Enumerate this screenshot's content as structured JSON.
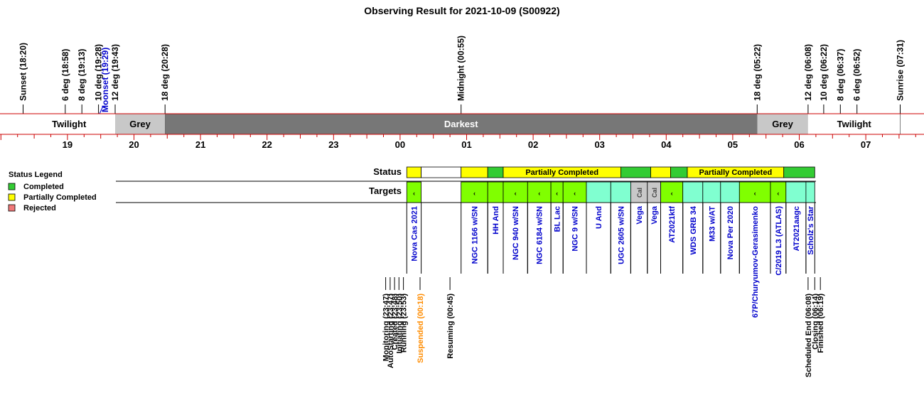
{
  "title": "Observing Result for 2021-10-09 (S00922)",
  "colors": {
    "completed": "#33CC33",
    "partial": "#FFFF00",
    "rejected": "#F07878",
    "target_green": "#80FF00",
    "target_cyan": "#80FFD0",
    "target_cal": "#C8C8C8",
    "grey_band": "#C8C8C8",
    "darkest_band": "#777777",
    "red_line": "#CC0000",
    "target_text": "#0000CC",
    "suspended_text": "#FF8C00"
  },
  "events_top": [
    {
      "label": "Sunset (18:20)",
      "hour": 18.333
    },
    {
      "label": "6 deg (18:58)",
      "hour": 18.967
    },
    {
      "label": "8 deg (19:13)",
      "hour": 19.217
    },
    {
      "label": "10 deg (19:28)",
      "hour": 19.467
    },
    {
      "label": "Moonset (19:29)",
      "hour": 19.483,
      "moon": true
    },
    {
      "label": "12 deg (19:43)",
      "hour": 19.717
    },
    {
      "label": "18 deg (20:28)",
      "hour": 20.467
    },
    {
      "label": "Midnight (00:55)",
      "hour": 24.917
    },
    {
      "label": "18 deg (05:22)",
      "hour": 29.367
    },
    {
      "label": "12 deg (06:08)",
      "hour": 30.133
    },
    {
      "label": "10 deg (06:22)",
      "hour": 30.367
    },
    {
      "label": "8 deg (06:37)",
      "hour": 30.617
    },
    {
      "label": "6 deg (06:52)",
      "hour": 30.867
    },
    {
      "label": "Sunrise (07:31)",
      "hour": 31.517
    }
  ],
  "bands": [
    {
      "label": "",
      "from": 18.0,
      "to": 18.333,
      "kind": "white"
    },
    {
      "label": "Twilight",
      "from": 18.333,
      "to": 19.717,
      "kind": "white"
    },
    {
      "label": "Grey",
      "from": 19.717,
      "to": 20.467,
      "kind": "grey"
    },
    {
      "label": "Darkest",
      "from": 20.467,
      "to": 29.367,
      "kind": "dark"
    },
    {
      "label": "Grey",
      "from": 29.367,
      "to": 30.133,
      "kind": "grey"
    },
    {
      "label": "Twilight",
      "from": 30.133,
      "to": 31.517,
      "kind": "white"
    }
  ],
  "hours": [
    "19",
    "20",
    "21",
    "22",
    "23",
    "00",
    "01",
    "02",
    "03",
    "04",
    "05",
    "06",
    "07"
  ],
  "legend": {
    "title": "Status Legend",
    "items": [
      {
        "label": "Completed",
        "color": "#33CC33"
      },
      {
        "label": "Partially Completed",
        "color": "#FFFF00"
      },
      {
        "label": "Rejected",
        "color": "#F07878"
      }
    ]
  },
  "row_labels": {
    "status": "Status",
    "targets": "Targets"
  },
  "status_segments": [
    {
      "from": 24.1,
      "to": 24.317,
      "status": "partial",
      "label": ""
    },
    {
      "from": 24.317,
      "to": 24.917,
      "status": "none",
      "label": ""
    },
    {
      "from": 24.917,
      "to": 25.317,
      "status": "partial",
      "label": ""
    },
    {
      "from": 25.317,
      "to": 25.55,
      "status": "completed",
      "label": ""
    },
    {
      "from": 25.55,
      "to": 27.317,
      "status": "partial",
      "label": "Partially Completed"
    },
    {
      "from": 27.317,
      "to": 27.767,
      "status": "completed",
      "label": ""
    },
    {
      "from": 27.767,
      "to": 28.067,
      "status": "partial",
      "label": ""
    },
    {
      "from": 28.067,
      "to": 28.317,
      "status": "completed",
      "label": ""
    },
    {
      "from": 28.317,
      "to": 29.767,
      "status": "partial",
      "label": "Partially Completed"
    },
    {
      "from": 29.767,
      "to": 30.233,
      "status": "completed",
      "label": ""
    }
  ],
  "targets": [
    {
      "name": "Nova Cas 2021",
      "from": 24.1,
      "to": 24.317,
      "color": "green",
      "mark": "‹"
    },
    {
      "name": "NGC 1166 w/SN",
      "from": 24.917,
      "to": 25.317,
      "color": "green",
      "mark": "‹"
    },
    {
      "name": "HH And",
      "from": 25.317,
      "to": 25.55,
      "color": "green",
      "mark": ""
    },
    {
      "name": "NGC 940 w/SN",
      "from": 25.55,
      "to": 25.917,
      "color": "green",
      "mark": "‹"
    },
    {
      "name": "NGC 6184 w/SN",
      "from": 25.917,
      "to": 26.267,
      "color": "green",
      "mark": "‹"
    },
    {
      "name": "BL Lac",
      "from": 26.267,
      "to": 26.45,
      "color": "green",
      "mark": "‹"
    },
    {
      "name": "NGC 9 w/SN",
      "from": 26.45,
      "to": 26.8,
      "color": "green",
      "mark": "‹"
    },
    {
      "name": "U And",
      "from": 26.8,
      "to": 27.167,
      "color": "cyan",
      "mark": ""
    },
    {
      "name": "UGC 2605 w/SN",
      "from": 27.167,
      "to": 27.467,
      "color": "cyan",
      "mark": ""
    },
    {
      "name": "Vega",
      "from": 27.467,
      "to": 27.717,
      "color": "cal",
      "mark": "Cal"
    },
    {
      "name": "Vega",
      "from": 27.717,
      "to": 27.917,
      "color": "cal",
      "mark": "Cal"
    },
    {
      "name": "AT2021ktf",
      "from": 27.917,
      "to": 28.25,
      "color": "green",
      "mark": "‹"
    },
    {
      "name": "WDS GRB 34",
      "from": 28.25,
      "to": 28.55,
      "color": "cyan",
      "mark": ""
    },
    {
      "name": "M33 w/AT",
      "from": 28.55,
      "to": 28.817,
      "color": "cyan",
      "mark": ""
    },
    {
      "name": "Nova Per 2020",
      "from": 28.817,
      "to": 29.1,
      "color": "cyan",
      "mark": ""
    },
    {
      "name": "67P/Churyumov-Gerasimenko",
      "from": 29.1,
      "to": 29.567,
      "color": "green",
      "mark": "‹"
    },
    {
      "name": "C/2019 L3 (ATLAS)",
      "from": 29.567,
      "to": 29.8,
      "color": "green",
      "mark": "‹"
    },
    {
      "name": "AT2021aagc",
      "from": 29.8,
      "to": 30.1,
      "color": "cyan",
      "mark": ""
    },
    {
      "name": "Scholz's Star",
      "from": 30.1,
      "to": 30.233,
      "color": "cyan",
      "mark": ""
    }
  ],
  "events_bottom": [
    {
      "label": "Monitoring (23:47)",
      "hour": 23.783,
      "color": "black"
    },
    {
      "label": "AutoStarting (23:47)",
      "hour": 23.85,
      "color": "black"
    },
    {
      "label": "Created (23:48)",
      "hour": 23.917,
      "color": "black"
    },
    {
      "label": "Initiating (23:50)",
      "hour": 23.983,
      "color": "black"
    },
    {
      "label": "Running (23:53)",
      "hour": 24.05,
      "color": "black"
    },
    {
      "label": "Suspended (00:18)",
      "hour": 24.3,
      "color": "orange"
    },
    {
      "label": "Resuming (00:45)",
      "hour": 24.75,
      "color": "black"
    },
    {
      "label": "Scheduled End (06:08)",
      "hour": 30.133,
      "color": "black"
    },
    {
      "label": "Closing (06:14)",
      "hour": 30.233,
      "color": "black"
    },
    {
      "label": "Finished (06:19)",
      "hour": 30.317,
      "color": "black"
    }
  ]
}
